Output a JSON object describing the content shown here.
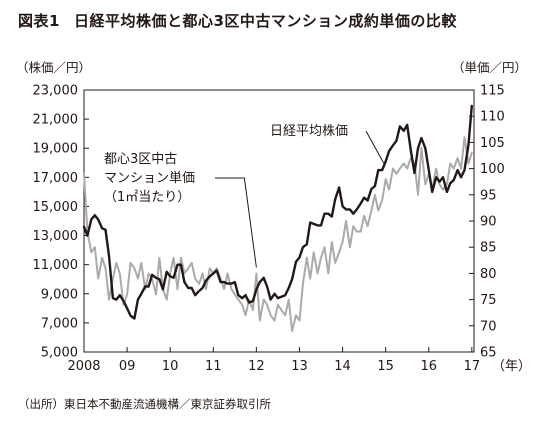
{
  "figure": {
    "number": "図表1",
    "title": "日経平均株価と都心3区中古マンション成約単価の比較",
    "source": "（出所）東日本不動産流通機構／東京証券取引所"
  },
  "chart_data": {
    "type": "line",
    "title": "日経平均株価と都心3区中古マンション成約単価の比較",
    "x_start": 2008,
    "x_end": 2017.05,
    "x_tick_labels": [
      "2008",
      "09",
      "10",
      "11",
      "12",
      "13",
      "14",
      "15",
      "16",
      "17"
    ],
    "x_unit_label": "（年）",
    "y_left": {
      "label": "（株価／円）",
      "range": [
        5000,
        23000
      ],
      "ticks": [
        "5,000",
        "7,000",
        "9,000",
        "11,000",
        "13,000",
        "15,000",
        "17,000",
        "19,000",
        "21,000",
        "23,000"
      ]
    },
    "y_right": {
      "label": "（単価／円）",
      "range": [
        65,
        115
      ],
      "ticks": [
        "65",
        "70",
        "75",
        "80",
        "85",
        "90",
        "95",
        "100",
        "105",
        "110",
        "115"
      ]
    },
    "colors": {
      "nikkei": "#231815",
      "condo": "#aaaaaa",
      "axis": "#231815"
    },
    "series": [
      {
        "name": "日経平均株価",
        "axis": "left",
        "color": "#231815",
        "x": [
          2008.0,
          2008.08,
          2008.17,
          2008.25,
          2008.33,
          2008.42,
          2008.5,
          2008.58,
          2008.67,
          2008.75,
          2008.83,
          2008.92,
          2009.0,
          2009.08,
          2009.17,
          2009.25,
          2009.33,
          2009.42,
          2009.5,
          2009.58,
          2009.67,
          2009.75,
          2009.83,
          2009.92,
          2010.0,
          2010.08,
          2010.17,
          2010.25,
          2010.33,
          2010.42,
          2010.5,
          2010.58,
          2010.67,
          2010.75,
          2010.83,
          2010.92,
          2011.0,
          2011.08,
          2011.17,
          2011.25,
          2011.33,
          2011.42,
          2011.5,
          2011.58,
          2011.67,
          2011.75,
          2011.83,
          2011.92,
          2012.0,
          2012.08,
          2012.17,
          2012.25,
          2012.33,
          2012.42,
          2012.5,
          2012.58,
          2012.67,
          2012.75,
          2012.83,
          2012.92,
          2013.0,
          2013.08,
          2013.17,
          2013.25,
          2013.33,
          2013.42,
          2013.5,
          2013.58,
          2013.67,
          2013.75,
          2013.83,
          2013.92,
          2014.0,
          2014.08,
          2014.17,
          2014.25,
          2014.33,
          2014.42,
          2014.5,
          2014.58,
          2014.67,
          2014.75,
          2014.83,
          2014.92,
          2015.0,
          2015.08,
          2015.17,
          2015.25,
          2015.33,
          2015.42,
          2015.5,
          2015.58,
          2015.67,
          2015.75,
          2015.83,
          2015.92,
          2016.0,
          2016.08,
          2016.17,
          2016.25,
          2016.33,
          2016.42,
          2016.5,
          2016.58,
          2016.67,
          2016.75,
          2016.83,
          2016.92,
          2017.0
        ],
        "values": [
          13600,
          13000,
          14100,
          14400,
          14100,
          13500,
          13400,
          11600,
          8700,
          8600,
          8900,
          8500,
          8000,
          7500,
          7300,
          8600,
          9000,
          9500,
          9500,
          10300,
          10100,
          10000,
          9300,
          10500,
          10200,
          10100,
          11000,
          11000,
          9800,
          9400,
          9400,
          8900,
          9200,
          9400,
          9900,
          10200,
          10400,
          10600,
          9800,
          9800,
          9700,
          9700,
          9800,
          8900,
          8700,
          8900,
          8400,
          8500,
          9300,
          9800,
          10100,
          9500,
          8600,
          9000,
          8700,
          8800,
          8900,
          9400,
          10000,
          11200,
          11500,
          12200,
          12400,
          13900,
          13800,
          13700,
          13700,
          14500,
          14500,
          14300,
          15500,
          16300,
          15000,
          14800,
          14800,
          14500,
          14800,
          15200,
          15600,
          15400,
          16200,
          16400,
          17500,
          17500,
          18100,
          18800,
          19200,
          19500,
          20500,
          20200,
          20600,
          18900,
          17300,
          19000,
          19700,
          19000,
          17500,
          16000,
          17000,
          16700,
          17000,
          16000,
          16600,
          16800,
          17500,
          17000,
          17500,
          19200,
          21900
        ]
      },
      {
        "name": "都心3区中古マンション単価（1㎡当たり）",
        "axis": "right",
        "color": "#aaaaaa",
        "x": [
          2008.0,
          2008.08,
          2008.17,
          2008.25,
          2008.33,
          2008.42,
          2008.5,
          2008.58,
          2008.67,
          2008.75,
          2008.83,
          2008.92,
          2009.0,
          2009.08,
          2009.17,
          2009.25,
          2009.33,
          2009.42,
          2009.5,
          2009.58,
          2009.67,
          2009.75,
          2009.83,
          2009.92,
          2010.0,
          2010.08,
          2010.17,
          2010.25,
          2010.33,
          2010.42,
          2010.5,
          2010.58,
          2010.67,
          2010.75,
          2010.83,
          2010.92,
          2011.0,
          2011.08,
          2011.17,
          2011.25,
          2011.33,
          2011.42,
          2011.5,
          2011.58,
          2011.67,
          2011.75,
          2011.83,
          2011.92,
          2012.0,
          2012.08,
          2012.17,
          2012.25,
          2012.33,
          2012.42,
          2012.5,
          2012.58,
          2012.67,
          2012.75,
          2012.83,
          2012.92,
          2013.0,
          2013.08,
          2013.17,
          2013.25,
          2013.33,
          2013.42,
          2013.5,
          2013.58,
          2013.67,
          2013.75,
          2013.83,
          2013.92,
          2014.0,
          2014.08,
          2014.17,
          2014.25,
          2014.33,
          2014.42,
          2014.5,
          2014.58,
          2014.67,
          2014.75,
          2014.83,
          2014.92,
          2015.0,
          2015.08,
          2015.17,
          2015.25,
          2015.33,
          2015.42,
          2015.5,
          2015.58,
          2015.67,
          2015.75,
          2015.83,
          2015.92,
          2016.0,
          2016.08,
          2016.17,
          2016.25,
          2016.33,
          2016.42,
          2016.5,
          2016.58,
          2016.67,
          2016.75,
          2016.83,
          2016.92,
          2017.0
        ],
        "values": [
          99,
          88,
          84,
          85,
          79,
          83,
          81,
          75,
          79,
          82,
          80,
          74,
          76,
          82,
          81,
          79,
          82,
          77,
          80,
          79,
          76,
          83,
          77,
          75,
          80,
          83,
          77,
          83,
          80,
          81,
          82,
          79,
          78,
          80,
          77,
          81,
          80,
          81,
          79,
          77,
          80,
          77,
          76,
          75,
          74,
          72,
          75,
          73,
          80,
          71,
          75,
          74,
          72,
          71,
          74,
          73,
          72,
          75,
          69,
          72,
          71,
          78,
          83,
          79,
          84,
          80,
          83,
          85,
          80,
          86,
          82,
          84,
          86,
          90,
          85,
          89,
          88,
          88,
          91,
          89,
          92,
          95,
          92,
          94,
          98,
          96,
          100,
          99,
          100,
          101,
          100,
          102,
          101,
          95,
          104,
          97,
          99,
          96,
          100,
          97,
          96,
          97,
          101,
          100,
          102,
          100,
          106,
          101,
          103
        ]
      }
    ],
    "annotations": [
      {
        "text": "日経平均株価",
        "series": 0
      },
      {
        "lines": [
          "都心3区中古",
          "マンション単価",
          "（1㎡当たり）"
        ],
        "series": 1
      }
    ]
  }
}
